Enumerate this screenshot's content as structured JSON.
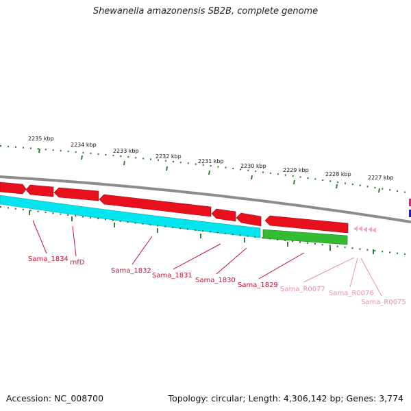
{
  "header": {
    "title": "Shewanella amazonensis SB2B, complete genome"
  },
  "footer": {
    "accession": "Accession: NC_008700",
    "topology": "Topology: circular; Length: 4,306,142 bp; Genes: 3,774"
  },
  "scale": {
    "ticks": [
      "2235 kbp",
      "2234 kbp",
      "2233 kbp",
      "2232 kbp",
      "2231 kbp",
      "2230 kbp",
      "2229 kbp",
      "2228 kbp",
      "2227 kbp"
    ]
  },
  "genes": [
    {
      "label": "Sama_1834",
      "category": "red"
    },
    {
      "label": "rnfD",
      "category": "red"
    },
    {
      "label": "Sama_1832",
      "category": "red"
    },
    {
      "label": "Sama_1831",
      "category": "red"
    },
    {
      "label": "Sama_1830",
      "category": "red"
    },
    {
      "label": "Sama_1829",
      "category": "red"
    },
    {
      "label": "Sama_R0077",
      "category": "pink"
    },
    {
      "label": "Sama_R0076",
      "category": "pink"
    },
    {
      "label": "Sama_R0075",
      "category": "pink"
    }
  ],
  "colors": {
    "gene_cds": "#e8101c",
    "cog_cyan": "#00e5ee",
    "cog_green": "#33bb33",
    "rna": "#f4a6c8",
    "backbone": "#8c8c8c",
    "tick": "#2e7d32",
    "gene_label": "#c8102e",
    "rna_label": "#e58fb5"
  }
}
